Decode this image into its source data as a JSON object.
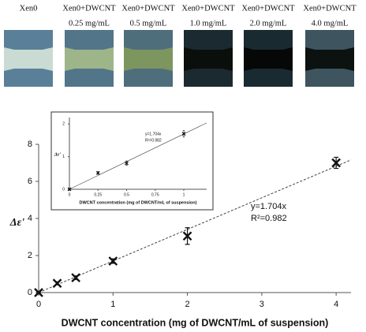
{
  "panels": [
    {
      "lines": [
        "Xen0"
      ],
      "color": "#5a7f99",
      "band": "#c9dbd2"
    },
    {
      "lines": [
        "Xen0+DWCNT",
        "0.25 mg/mL"
      ],
      "color": "#52758a",
      "band": "#9eb58a"
    },
    {
      "lines": [
        "Xen0+DWCNT",
        "0.5 mg/mL"
      ],
      "color": "#4f6e7c",
      "band": "#7d955e"
    },
    {
      "lines": [
        "Xen0+DWCNT",
        "1.0 mg/mL"
      ],
      "color": "#1b2a30",
      "band": "#0a0f0c"
    },
    {
      "lines": [
        "Xen0+DWCNT",
        "2.0 mg/mL"
      ],
      "color": "#1a2a31",
      "band": "#050807"
    },
    {
      "lines": [
        "Xen0+DWCNT",
        "4.0 mg/mL"
      ],
      "color": "#3e5560",
      "band": "#0c120f"
    }
  ],
  "chart_data": [
    {
      "type": "scatter",
      "x": [
        0,
        0.25,
        0.5,
        1,
        2,
        4
      ],
      "values": [
        0,
        0.5,
        0.8,
        1.7,
        3.05,
        7.0
      ],
      "errors": [
        0.05,
        0.08,
        0.1,
        0.12,
        0.45,
        0.3
      ],
      "xlim": [
        0,
        4.2
      ],
      "ylim": [
        0,
        8
      ],
      "xticks": [
        0,
        1,
        2,
        3,
        4
      ],
      "yticks": [
        0,
        2,
        4,
        6,
        8
      ],
      "xlabel": "DWCNT concentration (mg of DWCNT/mL of suspension)",
      "ylabel": "Δε'",
      "annotations": [
        "y=1.704x",
        "R²=0.982"
      ],
      "color": "#111111",
      "trendline": true
    },
    {
      "type": "scatter",
      "x": [
        0,
        0.25,
        0.5,
        1
      ],
      "values": [
        0,
        0.5,
        0.8,
        1.7
      ],
      "errors": [
        0.03,
        0.04,
        0.07,
        0.1
      ],
      "xlim": [
        0,
        1.2
      ],
      "ylim": [
        0,
        2.2
      ],
      "xticks": [
        0,
        0.25,
        0.5,
        0.75,
        1
      ],
      "yticks": [
        0,
        1,
        2
      ],
      "xlabel": "DWCNT concentration (mg of DWCNT/mL of suspension)",
      "ylabel": "Δε'",
      "annotations": [
        "y=1.704x",
        "R²=0.982"
      ],
      "color": "#111111",
      "trendline": true
    }
  ]
}
